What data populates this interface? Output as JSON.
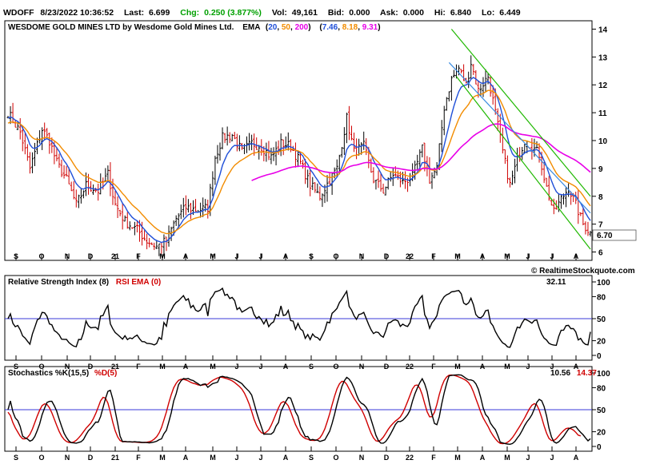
{
  "quote": {
    "symbol": "WDOFF",
    "datetime": "8/23/2022 10:36:52",
    "last_label": "Last:",
    "last": "6.699",
    "chg_label": "Chg:",
    "chg": "0.250 (3.877%)",
    "vol_label": "Vol:",
    "vol": "49,161",
    "bid_label": "Bid:",
    "bid": "0.000",
    "ask_label": "Ask:",
    "ask": "0.000",
    "hi_label": "Hi:",
    "hi": "6.840",
    "lo_label": "Lo:",
    "lo": "6.449"
  },
  "colors": {
    "ema20": "#1f4fd8",
    "ema50": "#f28c00",
    "ema200": "#e800e8",
    "up_bar": "#000000",
    "down_bar": "#d00000",
    "channel": "#1fb800",
    "trend": "#3a8be0",
    "positive": "#00a000",
    "ref_line": "#3a3ad8",
    "stoch_d": "#d00000"
  },
  "chart_data": [
    {
      "type": "ohlc",
      "title": "WESDOME GOLD MINES LTD by Wesdome Gold Mines Ltd.",
      "ema_label": "EMA",
      "ema_periods": [
        "20",
        "50",
        "200"
      ],
      "ema_values": [
        "7.46",
        "8.18",
        "9.31"
      ],
      "last_price_tag": "6.70",
      "watermark": "© RealtimeStockquote.com",
      "x_tick_labels": [
        "S",
        "O",
        "N",
        "D",
        "21",
        "F",
        "M",
        "A",
        "M",
        "J",
        "J",
        "A",
        "S",
        "O",
        "N",
        "D",
        "22",
        "F",
        "M",
        "A",
        "M",
        "J",
        "J",
        "A"
      ],
      "y_ticks": [
        6,
        7,
        8,
        9,
        10,
        11,
        12,
        13,
        14
      ],
      "ylim": [
        5.7,
        14.3
      ],
      "close_anchors": [
        [
          0,
          11.0
        ],
        [
          5,
          10.3
        ],
        [
          9,
          9.0
        ],
        [
          14,
          10.4
        ],
        [
          17,
          10.0
        ],
        [
          20,
          9.2
        ],
        [
          24,
          8.6
        ],
        [
          28,
          7.7
        ],
        [
          32,
          8.4
        ],
        [
          37,
          8.2
        ],
        [
          41,
          8.8
        ],
        [
          44,
          7.7
        ],
        [
          48,
          7.1
        ],
        [
          53,
          6.8
        ],
        [
          57,
          6.4
        ],
        [
          61,
          6.2
        ],
        [
          65,
          6.4
        ],
        [
          69,
          7.2
        ],
        [
          73,
          7.6
        ],
        [
          78,
          7.5
        ],
        [
          82,
          7.6
        ],
        [
          85,
          9.4
        ],
        [
          88,
          10.1
        ],
        [
          92,
          10.2
        ],
        [
          96,
          9.6
        ],
        [
          100,
          9.9
        ],
        [
          104,
          9.8
        ],
        [
          108,
          9.4
        ],
        [
          112,
          9.9
        ],
        [
          116,
          9.8
        ],
        [
          120,
          9.2
        ],
        [
          124,
          8.4
        ],
        [
          128,
          8.0
        ],
        [
          132,
          8.6
        ],
        [
          135,
          9.0
        ],
        [
          139,
          10.8
        ],
        [
          142,
          9.6
        ],
        [
          146,
          9.8
        ],
        [
          150,
          8.6
        ],
        [
          154,
          8.2
        ],
        [
          158,
          8.8
        ],
        [
          162,
          8.5
        ],
        [
          166,
          8.7
        ],
        [
          170,
          9.7
        ],
        [
          173,
          8.6
        ],
        [
          176,
          9.0
        ],
        [
          179,
          11.2
        ],
        [
          182,
          12.2
        ],
        [
          185,
          12.6
        ],
        [
          188,
          12.0
        ],
        [
          190,
          12.8
        ],
        [
          193,
          11.8
        ],
        [
          197,
          12.3
        ],
        [
          200,
          11.0
        ],
        [
          203,
          9.6
        ],
        [
          206,
          8.4
        ],
        [
          209,
          9.3
        ],
        [
          212,
          10.0
        ],
        [
          215,
          9.8
        ],
        [
          218,
          9.5
        ],
        [
          221,
          8.3
        ],
        [
          224,
          7.4
        ],
        [
          227,
          7.9
        ],
        [
          230,
          8.3
        ],
        [
          233,
          7.7
        ],
        [
          236,
          7.0
        ],
        [
          239,
          6.7
        ]
      ],
      "ema_endpoints": {
        "ema20": 7.46,
        "ema50": 8.18,
        "ema200": 9.31
      },
      "channel": {
        "upper": [
          [
            182,
            14.0
          ],
          [
            239,
            8.0
          ]
        ],
        "lower": [
          [
            184,
            12.3
          ],
          [
            239,
            6.1
          ]
        ],
        "mid": [
          [
            181,
            12.8
          ],
          [
            239,
            7.4
          ]
        ]
      }
    },
    {
      "type": "line",
      "title": "Relative Strength Index (8)",
      "ema_label": "RSI EMA (0)",
      "current": "32.11",
      "y_ticks": [
        0,
        20,
        50,
        80,
        100
      ],
      "ref_level": 50,
      "ylim": [
        0,
        100
      ],
      "x_tick_labels": [
        "S",
        "O",
        "N",
        "D",
        "21",
        "F",
        "M",
        "A",
        "M",
        "J",
        "J",
        "A",
        "S",
        "O",
        "N",
        "D",
        "22",
        "F",
        "M",
        "A",
        "M",
        "J",
        "J",
        "A"
      ]
    },
    {
      "type": "line",
      "title": "Stochastics %K(15,5)",
      "d_label": "%D(5)",
      "k_current": "10.56",
      "d_current": "14.37",
      "y_ticks": [
        0,
        20,
        50,
        80,
        100
      ],
      "ref_level": 50,
      "ylim": [
        0,
        100
      ],
      "x_tick_labels": [
        "S",
        "O",
        "N",
        "D",
        "21",
        "F",
        "M",
        "A",
        "M",
        "J",
        "J",
        "A",
        "S",
        "O",
        "N",
        "D",
        "22",
        "F",
        "M",
        "A",
        "M",
        "J",
        "J",
        "A"
      ]
    }
  ]
}
